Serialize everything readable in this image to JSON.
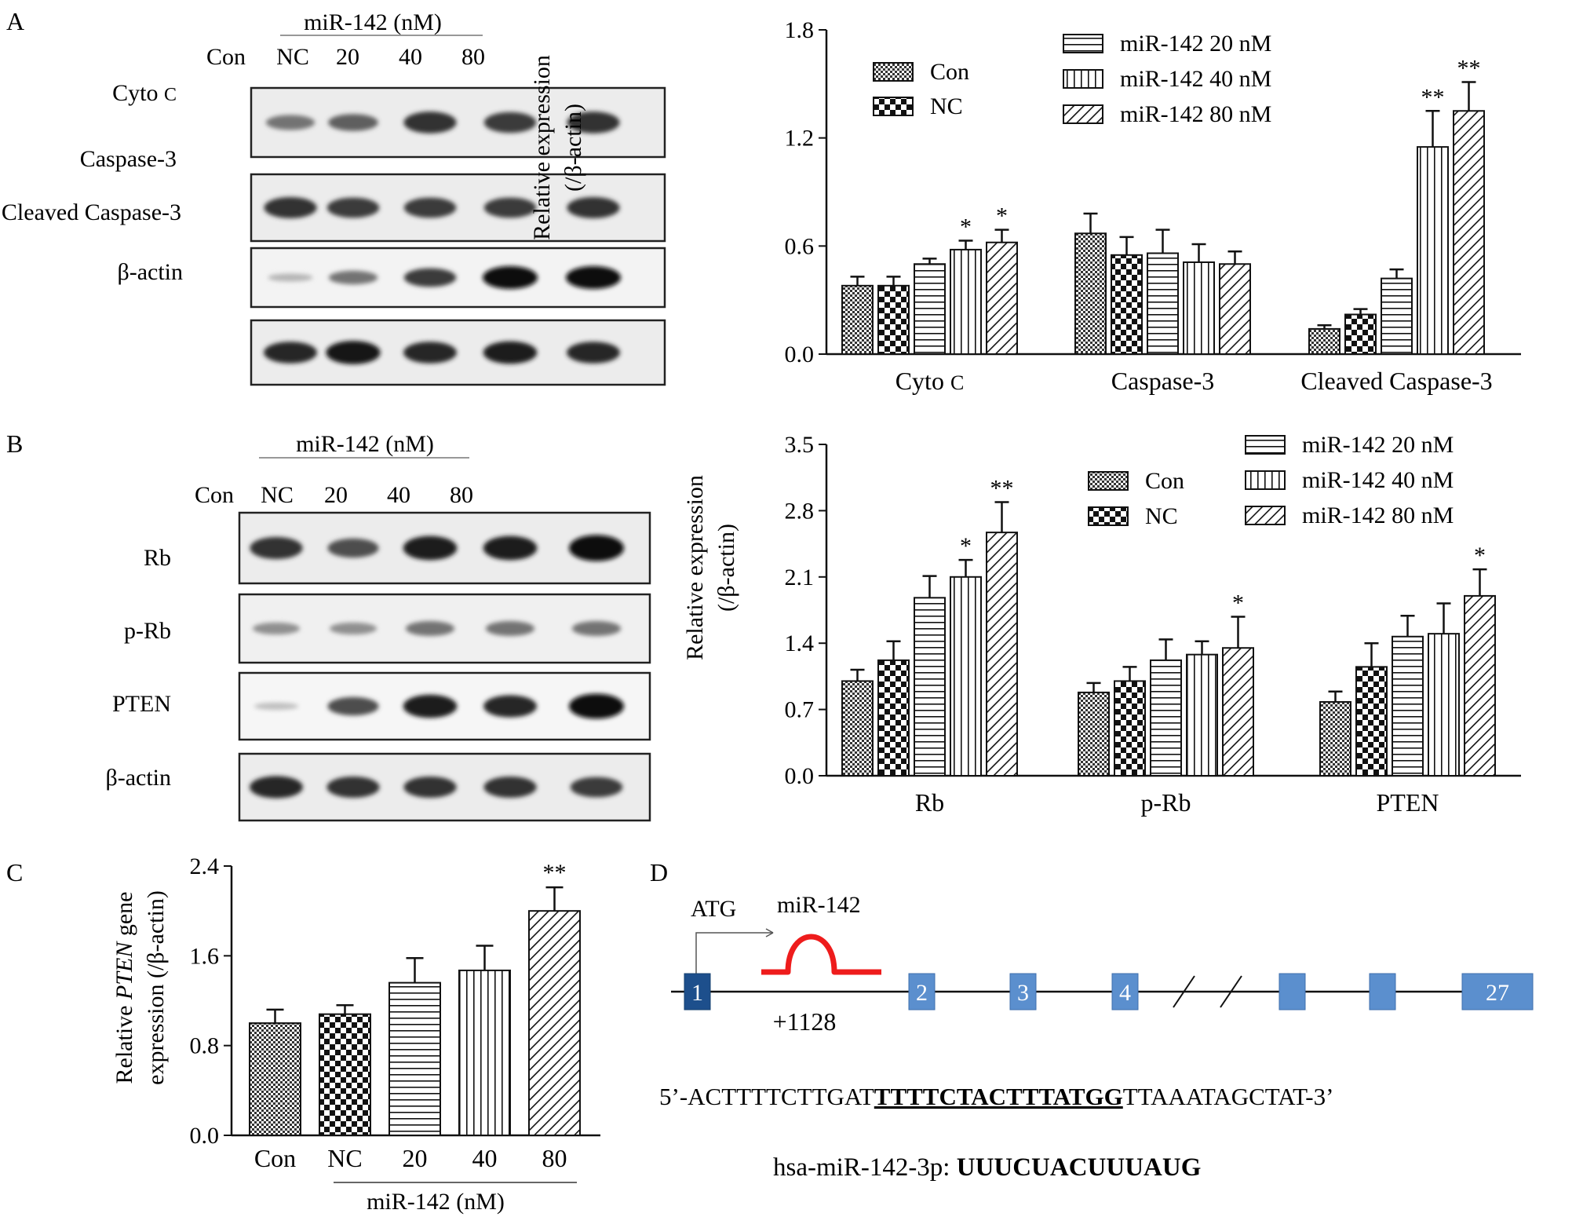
{
  "panels": {
    "A": {
      "label": "A",
      "blot": {
        "treatment": "miR-142 (nM)",
        "lanes": [
          "Con",
          "NC",
          "20",
          "40",
          "80"
        ],
        "rows": [
          {
            "label": "Cyto c",
            "label_main": "Cyto",
            "label_sub": "C",
            "intensity": [
              0.45,
              0.55,
              0.8,
              0.75,
              0.8
            ]
          },
          {
            "label": "Caspase-3",
            "intensity": [
              0.8,
              0.75,
              0.75,
              0.75,
              0.8
            ]
          },
          {
            "label": "Cleaved Caspase-3",
            "intensity": [
              0.1,
              0.45,
              0.75,
              1.0,
              1.0
            ]
          },
          {
            "label": "β-actin",
            "intensity": [
              0.85,
              0.95,
              0.85,
              0.9,
              0.85
            ]
          }
        ]
      }
    },
    "B": {
      "label": "B",
      "blot": {
        "treatment": "miR-142 (nM)",
        "lanes": [
          "Con",
          "NC",
          "20",
          "40",
          "80"
        ],
        "rows": [
          {
            "label": "Rb",
            "intensity": [
              0.8,
              0.65,
              0.9,
              0.9,
              1.0
            ]
          },
          {
            "label": "p-Rb",
            "intensity": [
              0.3,
              0.3,
              0.45,
              0.45,
              0.45
            ]
          },
          {
            "label": "PTEN",
            "intensity": [
              0.05,
              0.65,
              0.9,
              0.85,
              1.0
            ]
          },
          {
            "label": "β-actin",
            "intensity": [
              0.85,
              0.8,
              0.8,
              0.8,
              0.75
            ]
          }
        ]
      }
    },
    "C": {
      "label": "C"
    },
    "D": {
      "label": "D",
      "atg": "ATG",
      "mirna_label": "miR-142",
      "position": "+1128",
      "exons": [
        "1",
        "2",
        "3",
        "4",
        "",
        "",
        "27"
      ],
      "seq_prefix": "5’-ACTTTTCTTGAT",
      "seq_site": "TTTTCTACTTTATGG",
      "seq_suffix": "TTAAATAGCTAT-3’",
      "mirna_name": "hsa-miR-142-3p: ",
      "mirna_seq": "UUUCUACUUUAUG"
    }
  },
  "chart_data": [
    {
      "id": "A",
      "type": "bar",
      "ylabel": "Relative expression (/β-actin)",
      "ylabel_line1": "Relative expression",
      "ylabel_line2": "(/β-actin)",
      "ylim": [
        0,
        1.8
      ],
      "yticks": [
        "0.0",
        "0.6",
        "1.2",
        "1.8"
      ],
      "categories": [
        "Cyto c",
        "Caspase-3",
        "Cleaved Caspase-3"
      ],
      "legend": [
        "Con",
        "NC",
        "miR-142 20 nM",
        "miR-142 40 nM",
        "miR-142 80 nM"
      ],
      "series": [
        {
          "name": "Con",
          "pattern": "checker",
          "values": [
            0.38,
            0.67,
            0.14
          ],
          "err": [
            0.05,
            0.11,
            0.02
          ],
          "sig": [
            "",
            "",
            ""
          ]
        },
        {
          "name": "NC",
          "pattern": "bigchecker",
          "values": [
            0.38,
            0.55,
            0.22
          ],
          "err": [
            0.05,
            0.1,
            0.03
          ],
          "sig": [
            "",
            "",
            ""
          ]
        },
        {
          "name": "miR-142 20 nM",
          "pattern": "hlines",
          "values": [
            0.5,
            0.56,
            0.42
          ],
          "err": [
            0.03,
            0.13,
            0.05
          ],
          "sig": [
            "",
            "",
            ""
          ]
        },
        {
          "name": "miR-142 40 nM",
          "pattern": "vlines",
          "values": [
            0.58,
            0.51,
            1.15
          ],
          "err": [
            0.05,
            0.1,
            0.2
          ],
          "sig": [
            "*",
            "",
            "**"
          ]
        },
        {
          "name": "miR-142 80 nM",
          "pattern": "diag",
          "values": [
            0.62,
            0.5,
            1.35
          ],
          "err": [
            0.07,
            0.07,
            0.16
          ],
          "sig": [
            "*",
            "",
            "**"
          ]
        }
      ]
    },
    {
      "id": "B",
      "type": "bar",
      "ylabel": "Relative expression (/β-actin)",
      "ylabel_line1": "Relative expression",
      "ylabel_line2": "(/β-actin)",
      "ylim": [
        0,
        3.5
      ],
      "yticks": [
        "0.0",
        "0.7",
        "1.4",
        "2.1",
        "2.8",
        "3.5"
      ],
      "categories": [
        "Rb",
        "p-Rb",
        "PTEN"
      ],
      "legend": [
        "Con",
        "NC",
        "miR-142 20 nM",
        "miR-142 40 nM",
        "miR-142 80 nM"
      ],
      "series": [
        {
          "name": "Con",
          "pattern": "checker",
          "values": [
            1.0,
            0.88,
            0.78
          ],
          "err": [
            0.12,
            0.1,
            0.11
          ],
          "sig": [
            "",
            "",
            ""
          ]
        },
        {
          "name": "NC",
          "pattern": "bigchecker",
          "values": [
            1.22,
            1.0,
            1.15
          ],
          "err": [
            0.2,
            0.15,
            0.25
          ],
          "sig": [
            "",
            "",
            ""
          ]
        },
        {
          "name": "miR-142 20 nM",
          "pattern": "hlines",
          "values": [
            1.88,
            1.22,
            1.47
          ],
          "err": [
            0.23,
            0.22,
            0.22
          ],
          "sig": [
            "",
            "",
            ""
          ]
        },
        {
          "name": "miR-142 40 nM",
          "pattern": "vlines",
          "values": [
            2.1,
            1.28,
            1.5
          ],
          "err": [
            0.18,
            0.14,
            0.32
          ],
          "sig": [
            "*",
            "",
            ""
          ]
        },
        {
          "name": "miR-142 80 nM",
          "pattern": "diag",
          "values": [
            2.57,
            1.35,
            1.9
          ],
          "err": [
            0.32,
            0.33,
            0.28
          ],
          "sig": [
            "**",
            "*",
            "*"
          ]
        }
      ]
    },
    {
      "id": "C",
      "type": "bar",
      "ylabel_pre": "Relative ",
      "ylabel_gene": "PTEN",
      "ylabel_post": " gene",
      "ylabel_line2": "expression (/β-actin)",
      "ylim": [
        0,
        2.4
      ],
      "yticks": [
        "0.0",
        "0.8",
        "1.6",
        "2.4"
      ],
      "categories": [
        "Con",
        "NC",
        "20",
        "40",
        "80"
      ],
      "xgroup_label": "miR-142 (nM)",
      "patterns": [
        "checker",
        "bigchecker",
        "hlines",
        "vlines",
        "diag"
      ],
      "values": [
        1.0,
        1.08,
        1.36,
        1.47,
        2.0
      ],
      "err": [
        0.12,
        0.08,
        0.22,
        0.22,
        0.21
      ],
      "sig": [
        "",
        "",
        "",
        "",
        "**"
      ]
    }
  ]
}
